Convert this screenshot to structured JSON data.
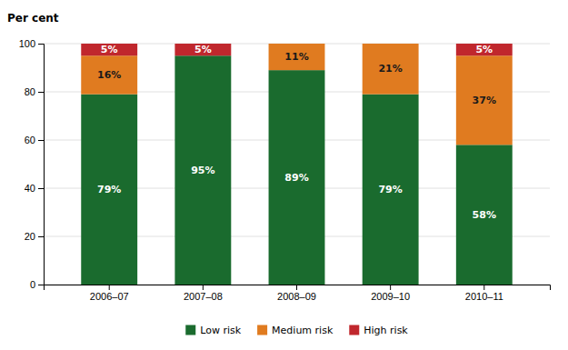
{
  "chart_data": {
    "type": "bar",
    "stacked": true,
    "ylabel": "Per cent",
    "categories": [
      "2006–07",
      "2007–08",
      "2008–09",
      "2009–10",
      "2010–11"
    ],
    "series": [
      {
        "name": "Low risk",
        "color": "#1a6b2e",
        "values": [
          79,
          95,
          89,
          79,
          58
        ],
        "value_labels": [
          "79%",
          "95%",
          "89%",
          "79%",
          "58%"
        ]
      },
      {
        "name": "Medium risk",
        "color": "#e07b20",
        "values": [
          16,
          0,
          11,
          21,
          37
        ],
        "value_labels": [
          "16%",
          null,
          "11%",
          "21%",
          "37%"
        ]
      },
      {
        "name": "High risk",
        "color": "#c0272d",
        "values": [
          5,
          5,
          0,
          0,
          5
        ],
        "value_labels": [
          "5%",
          "5%",
          null,
          null,
          "5%"
        ]
      }
    ],
    "ylim": [
      0,
      100
    ],
    "yticks": [
      0,
      20,
      40,
      60,
      80,
      100
    ],
    "grid": true,
    "data_labels": true,
    "legend": "bottom"
  }
}
